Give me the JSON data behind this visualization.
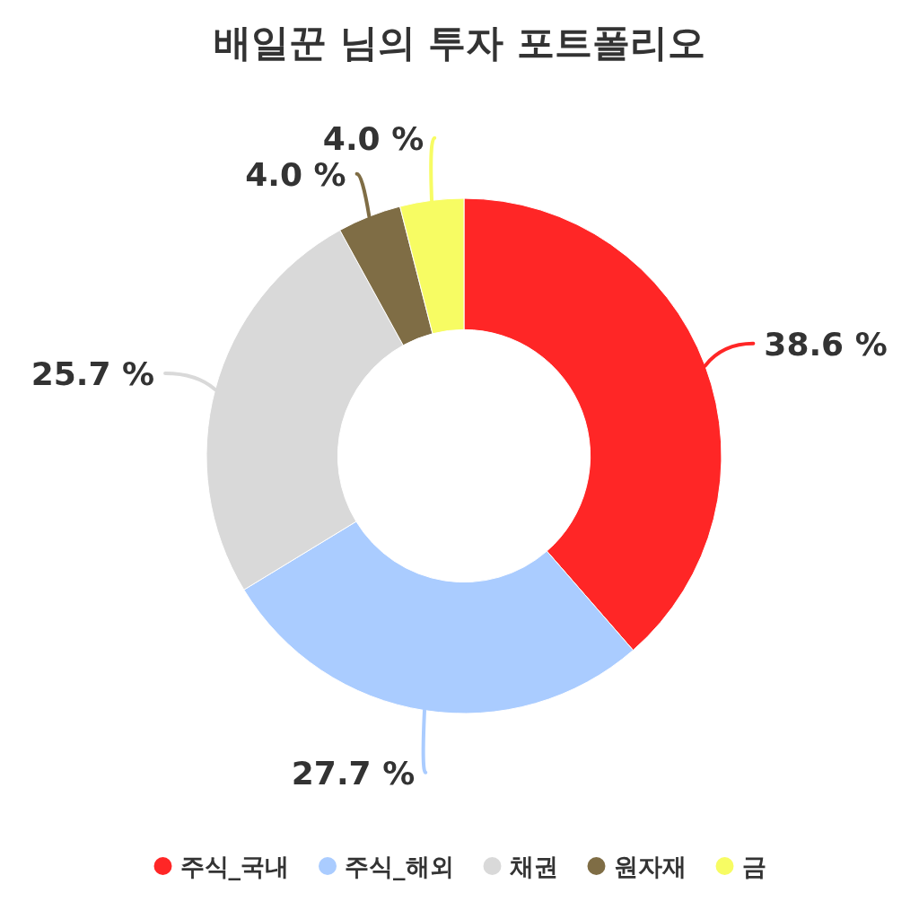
{
  "chart_data": {
    "type": "donut",
    "title": "배일꾼 님의 투자 포트폴리오",
    "categories": [
      "주식_국내",
      "주식_해외",
      "채권",
      "원자재",
      "금"
    ],
    "values": [
      38.6,
      27.7,
      25.7,
      4.0,
      4.0
    ],
    "colors": [
      "#ff2626",
      "#aaccff",
      "#d9d9d9",
      "#7f6d45",
      "#f7fc63"
    ],
    "value_labels": [
      "38.6 %",
      "27.7 %",
      "25.7 %",
      "4.0 %",
      "4.0 %"
    ],
    "legend": "bottom"
  }
}
